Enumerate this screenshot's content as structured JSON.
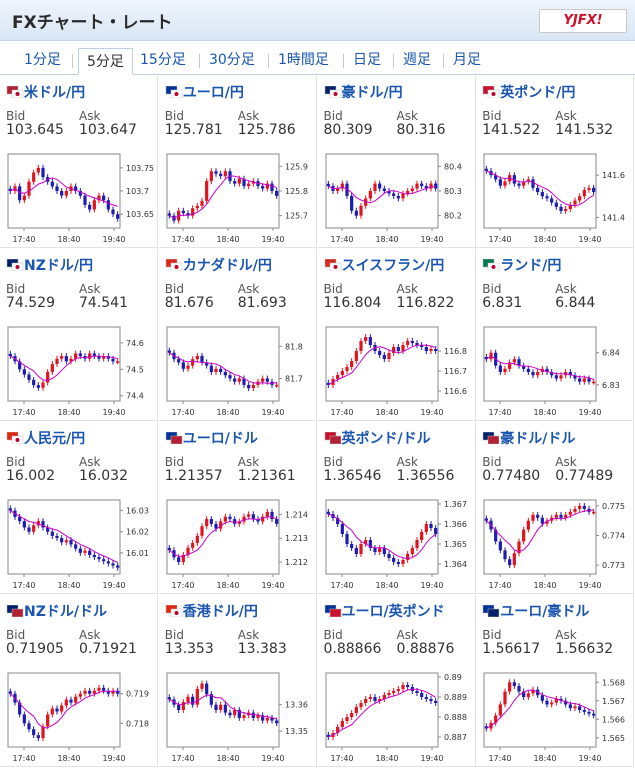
{
  "app": {
    "title": "FXチャート・レート",
    "logo": "YJFX!"
  },
  "tabs": [
    "1分足",
    "5分足",
    "15分足",
    "30分足",
    "1時間足",
    "日足",
    "週足",
    "月足"
  ],
  "active_tab": "5分足",
  "labels": {
    "bid": "Bid",
    "ask": "Ask"
  },
  "colors": {
    "up": "#e0141e",
    "down": "#1c1cb0",
    "ma": "#cc00cc",
    "ma2": "#2aa87a",
    "link": "#1a55b0"
  },
  "cards": [
    {
      "pair": "米ドル/円",
      "flag": "us-jp-flag-icon",
      "bid": "103.645",
      "ask": "103.647",
      "chart_data": {
        "type": "candlestick",
        "x_ticks": [
          "17:40",
          "18:40",
          "19:40"
        ],
        "y_ticks": [
          "103.75",
          "103.7",
          "103.65"
        ],
        "ylim": [
          103.62,
          103.78
        ],
        "closes": [
          103.7,
          103.71,
          103.68,
          103.69,
          103.72,
          103.74,
          103.75,
          103.73,
          103.72,
          103.71,
          103.7,
          103.69,
          103.7,
          103.71,
          103.7,
          103.69,
          103.67,
          103.66,
          103.68,
          103.69,
          103.68,
          103.66,
          103.65,
          103.64
        ]
      }
    },
    {
      "pair": "ユーロ/円",
      "flag": "eu-jp-flag-icon",
      "bid": "125.781",
      "ask": "125.786",
      "chart_data": {
        "type": "candlestick",
        "x_ticks": [
          "17:40",
          "18:40",
          "19:40"
        ],
        "y_ticks": [
          "125.9",
          "125.8",
          "125.7"
        ],
        "ylim": [
          125.65,
          125.95
        ],
        "closes": [
          125.7,
          125.68,
          125.72,
          125.71,
          125.7,
          125.73,
          125.74,
          125.76,
          125.84,
          125.88,
          125.87,
          125.86,
          125.88,
          125.84,
          125.83,
          125.85,
          125.82,
          125.83,
          125.84,
          125.82,
          125.81,
          125.83,
          125.8,
          125.78
        ]
      }
    },
    {
      "pair": "豪ドル/円",
      "flag": "au-jp-flag-icon",
      "bid": "80.309",
      "ask": "80.316",
      "chart_data": {
        "type": "candlestick",
        "x_ticks": [
          "17:40",
          "18:40",
          "19:40"
        ],
        "y_ticks": [
          "80.4",
          "80.3",
          "80.2"
        ],
        "ylim": [
          80.15,
          80.45
        ],
        "closes": [
          80.32,
          80.3,
          80.31,
          80.33,
          80.28,
          80.22,
          80.2,
          80.24,
          80.27,
          80.3,
          80.33,
          80.31,
          80.3,
          80.29,
          80.28,
          80.27,
          80.29,
          80.3,
          80.31,
          80.33,
          80.32,
          80.31,
          80.33,
          80.31
        ]
      }
    },
    {
      "pair": "英ポンド/円",
      "flag": "gb-jp-flag-icon",
      "bid": "141.522",
      "ask": "141.532",
      "chart_data": {
        "type": "candlestick",
        "x_ticks": [
          "17:40",
          "18:40",
          "19:40"
        ],
        "y_ticks": [
          "141.6",
          "141.4"
        ],
        "ylim": [
          141.35,
          141.7
        ],
        "closes": [
          141.62,
          141.6,
          141.58,
          141.55,
          141.57,
          141.6,
          141.56,
          141.55,
          141.57,
          141.58,
          141.54,
          141.52,
          141.5,
          141.49,
          141.47,
          141.45,
          141.43,
          141.44,
          141.46,
          141.48,
          141.5,
          141.53,
          141.54,
          141.52
        ]
      }
    },
    {
      "pair": "NZドル/円",
      "flag": "nz-jp-flag-icon",
      "bid": "74.529",
      "ask": "74.541",
      "chart_data": {
        "type": "candlestick",
        "x_ticks": [
          "17:40",
          "18:40",
          "19:40"
        ],
        "y_ticks": [
          "74.6",
          "74.5",
          "74.4"
        ],
        "ylim": [
          74.38,
          74.66
        ],
        "closes": [
          74.55,
          74.53,
          74.5,
          74.48,
          74.46,
          74.44,
          74.43,
          74.45,
          74.49,
          74.52,
          74.54,
          74.55,
          74.53,
          74.54,
          74.56,
          74.55,
          74.54,
          74.56,
          74.55,
          74.54,
          74.55,
          74.54,
          74.53,
          74.53
        ]
      }
    },
    {
      "pair": "カナダドル/円",
      "flag": "ca-jp-flag-icon",
      "bid": "81.676",
      "ask": "81.693",
      "chart_data": {
        "type": "candlestick",
        "x_ticks": [
          "17:40",
          "18:40",
          "19:40"
        ],
        "y_ticks": [
          "81.8",
          "81.7"
        ],
        "ylim": [
          81.63,
          81.86
        ],
        "closes": [
          81.78,
          81.76,
          81.75,
          81.73,
          81.74,
          81.76,
          81.77,
          81.75,
          81.74,
          81.72,
          81.73,
          81.72,
          81.71,
          81.7,
          81.69,
          81.7,
          81.68,
          81.67,
          81.68,
          81.69,
          81.7,
          81.69,
          81.68,
          81.68
        ]
      }
    },
    {
      "pair": "スイスフラン/円",
      "flag": "ch-jp-flag-icon",
      "bid": "116.804",
      "ask": "116.822",
      "chart_data": {
        "type": "candlestick",
        "x_ticks": [
          "17:40",
          "18:40",
          "19:40"
        ],
        "y_ticks": [
          "116.8",
          "116.7",
          "116.6"
        ],
        "ylim": [
          116.55,
          116.92
        ],
        "closes": [
          116.63,
          116.66,
          116.68,
          116.7,
          116.72,
          116.75,
          116.8,
          116.85,
          116.87,
          116.83,
          116.8,
          116.78,
          116.76,
          116.79,
          116.82,
          116.8,
          116.83,
          116.85,
          116.84,
          116.83,
          116.82,
          116.8,
          116.81,
          116.8
        ]
      }
    },
    {
      "pair": "ランド/円",
      "flag": "za-jp-flag-icon",
      "bid": "6.831",
      "ask": "6.844",
      "chart_data": {
        "type": "candlestick",
        "x_ticks": [
          "17:40",
          "18:40",
          "19:40"
        ],
        "y_ticks": [
          "6.84",
          "6.83"
        ],
        "ylim": [
          6.825,
          6.848
        ],
        "closes": [
          6.838,
          6.84,
          6.836,
          6.834,
          6.835,
          6.837,
          6.838,
          6.836,
          6.835,
          6.834,
          6.833,
          6.834,
          6.835,
          6.834,
          6.833,
          6.832,
          6.833,
          6.834,
          6.833,
          6.832,
          6.831,
          6.832,
          6.831,
          6.831
        ]
      }
    },
    {
      "pair": "人民元/円",
      "flag": "cn-jp-flag-icon",
      "bid": "16.002",
      "ask": "16.032",
      "chart_data": {
        "type": "candlestick",
        "x_ticks": [
          "17:40",
          "18:40",
          "19:40"
        ],
        "y_ticks": [
          "16.03",
          "16.02",
          "16.01"
        ],
        "ylim": [
          16.0,
          16.035
        ],
        "closes": [
          16.03,
          16.027,
          16.025,
          16.022,
          16.02,
          16.023,
          16.025,
          16.022,
          16.02,
          16.018,
          16.017,
          16.015,
          16.016,
          16.014,
          16.012,
          16.01,
          16.011,
          16.009,
          16.008,
          16.007,
          16.006,
          16.005,
          16.004,
          16.003
        ]
      }
    },
    {
      "pair": "ユーロ/ドル",
      "flag": "eu-us-flag-icon",
      "bid": "1.21357",
      "ask": "1.21361",
      "chart_data": {
        "type": "candlestick",
        "x_ticks": [
          "17:40",
          "18:40",
          "19:40"
        ],
        "y_ticks": [
          "1.214",
          "1.213",
          "1.212"
        ],
        "ylim": [
          1.2115,
          1.2146
        ],
        "closes": [
          1.2125,
          1.2122,
          1.212,
          1.2123,
          1.2126,
          1.2128,
          1.2131,
          1.2135,
          1.2138,
          1.2136,
          1.2134,
          1.2137,
          1.2139,
          1.2138,
          1.2136,
          1.2137,
          1.2139,
          1.214,
          1.2138,
          1.2137,
          1.2139,
          1.2141,
          1.2138,
          1.2136
        ]
      }
    },
    {
      "pair": "英ポンド/ドル",
      "flag": "gb-us-flag-icon",
      "bid": "1.36546",
      "ask": "1.36556",
      "chart_data": {
        "type": "candlestick",
        "x_ticks": [
          "17:40",
          "18:40",
          "19:40"
        ],
        "y_ticks": [
          "1.367",
          "1.366",
          "1.365",
          "1.364"
        ],
        "ylim": [
          1.3635,
          1.3672
        ],
        "closes": [
          1.3665,
          1.3663,
          1.366,
          1.3655,
          1.365,
          1.3648,
          1.3645,
          1.365,
          1.3652,
          1.3648,
          1.3646,
          1.3648,
          1.3645,
          1.3643,
          1.3641,
          1.364,
          1.3642,
          1.3645,
          1.3648,
          1.3652,
          1.3656,
          1.366,
          1.3658,
          1.3655
        ]
      }
    },
    {
      "pair": "豪ドル/ドル",
      "flag": "au-us-flag-icon",
      "bid": "0.77480",
      "ask": "0.77489",
      "chart_data": {
        "type": "candlestick",
        "x_ticks": [
          "17:40",
          "18:40",
          "19:40"
        ],
        "y_ticks": [
          "0.775",
          "0.774",
          "0.773"
        ],
        "ylim": [
          0.7727,
          0.7752
        ],
        "closes": [
          0.7745,
          0.7742,
          0.7738,
          0.7735,
          0.7732,
          0.773,
          0.7734,
          0.7738,
          0.7742,
          0.7745,
          0.7747,
          0.7746,
          0.7744,
          0.7745,
          0.7746,
          0.7747,
          0.7746,
          0.7747,
          0.7748,
          0.7749,
          0.775,
          0.7749,
          0.7748,
          0.7748
        ]
      }
    },
    {
      "pair": "NZドル/ドル",
      "flag": "nz-us-flag-icon",
      "bid": "0.71905",
      "ask": "0.71921",
      "chart_data": {
        "type": "candlestick",
        "x_ticks": [
          "17:40",
          "18:40",
          "19:40"
        ],
        "y_ticks": [
          "0.719",
          "0.718"
        ],
        "ylim": [
          0.7172,
          0.7197
        ],
        "closes": [
          0.719,
          0.7187,
          0.7183,
          0.718,
          0.7178,
          0.7176,
          0.7175,
          0.7179,
          0.7183,
          0.7185,
          0.7184,
          0.7186,
          0.7188,
          0.7187,
          0.7189,
          0.719,
          0.7191,
          0.719,
          0.7191,
          0.7192,
          0.7191,
          0.719,
          0.7191,
          0.719
        ]
      }
    },
    {
      "pair": "香港ドル/円",
      "flag": "hk-jp-flag-icon",
      "bid": "13.353",
      "ask": "13.383",
      "chart_data": {
        "type": "candlestick",
        "x_ticks": [
          "17:40",
          "18:40",
          "19:40"
        ],
        "y_ticks": [
          "13.36",
          "13.35"
        ],
        "ylim": [
          13.344,
          13.372
        ],
        "closes": [
          13.362,
          13.36,
          13.358,
          13.361,
          13.363,
          13.36,
          13.366,
          13.368,
          13.364,
          13.36,
          13.358,
          13.36,
          13.357,
          13.356,
          13.358,
          13.355,
          13.356,
          13.357,
          13.355,
          13.356,
          13.354,
          13.355,
          13.354,
          13.353
        ]
      }
    },
    {
      "pair": "ユーロ/英ポンド",
      "flag": "eu-gb-flag-icon",
      "bid": "0.88866",
      "ask": "0.88876",
      "chart_data": {
        "type": "candlestick",
        "x_ticks": [
          "17:40",
          "18:40",
          "19:40"
        ],
        "y_ticks": [
          "0.89",
          "0.889",
          "0.888",
          "0.887"
        ],
        "ylim": [
          0.8865,
          0.8902
        ],
        "closes": [
          0.887,
          0.8872,
          0.8875,
          0.8878,
          0.888,
          0.8882,
          0.8885,
          0.8887,
          0.8889,
          0.889,
          0.8888,
          0.8889,
          0.8891,
          0.8892,
          0.8893,
          0.8894,
          0.8896,
          0.8895,
          0.8893,
          0.8892,
          0.889,
          0.8889,
          0.8888,
          0.8887
        ]
      }
    },
    {
      "pair": "ユーロ/豪ドル",
      "flag": "eu-au-flag-icon",
      "bid": "1.56617",
      "ask": "1.56632",
      "chart_data": {
        "type": "candlestick",
        "x_ticks": [
          "17:40",
          "18:40",
          "19:40"
        ],
        "y_ticks": [
          "1.568",
          "1.567",
          "1.566",
          "1.565"
        ],
        "ylim": [
          1.5645,
          1.5685
        ],
        "closes": [
          1.5655,
          1.5658,
          1.5662,
          1.5668,
          1.5675,
          1.568,
          1.5678,
          1.5675,
          1.5672,
          1.5674,
          1.5676,
          1.5673,
          1.567,
          1.5668,
          1.5669,
          1.5671,
          1.567,
          1.5668,
          1.5666,
          1.5667,
          1.5665,
          1.5664,
          1.5663,
          1.5662
        ]
      }
    }
  ]
}
